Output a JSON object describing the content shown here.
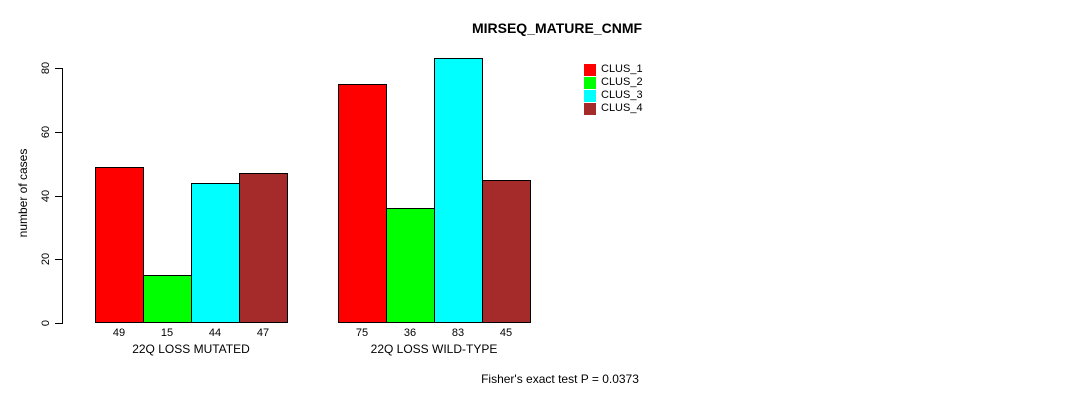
{
  "title": "MIRSEQ_MATURE_CNMF",
  "annotation": "Fisher's exact test P = 0.0373",
  "chart_data": {
    "type": "bar",
    "title": "MIRSEQ_MATURE_CNMF",
    "xlabel": "",
    "ylabel": "number of cases",
    "ylim": [
      0,
      80
    ],
    "yticks": [
      0,
      20,
      40,
      60,
      80
    ],
    "grid": false,
    "legend_position": "top-right",
    "categories": [
      "22Q LOSS MUTATED",
      "22Q LOSS WILD-TYPE"
    ],
    "series": [
      {
        "name": "CLUS_1",
        "color": "#FF0000",
        "values": [
          49,
          75
        ]
      },
      {
        "name": "CLUS_2",
        "color": "#00FF00",
        "values": [
          15,
          36
        ]
      },
      {
        "name": "CLUS_3",
        "color": "#00FFFF",
        "values": [
          44,
          83
        ]
      },
      {
        "name": "CLUS_4",
        "color": "#A52A2A",
        "values": [
          47,
          45
        ]
      }
    ],
    "bar_value_labels": [
      [
        49,
        15,
        44,
        47
      ],
      [
        75,
        36,
        83,
        45
      ]
    ],
    "annotation": "Fisher's exact test P = 0.0373"
  }
}
